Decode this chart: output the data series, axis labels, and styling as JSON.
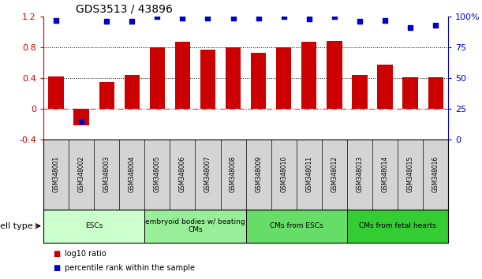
{
  "title": "GDS3513 / 43896",
  "samples": [
    "GSM348001",
    "GSM348002",
    "GSM348003",
    "GSM348004",
    "GSM348005",
    "GSM348006",
    "GSM348007",
    "GSM348008",
    "GSM348009",
    "GSM348010",
    "GSM348011",
    "GSM348012",
    "GSM348013",
    "GSM348014",
    "GSM348015",
    "GSM348016"
  ],
  "log10_ratio": [
    0.42,
    -0.22,
    0.35,
    0.44,
    0.8,
    0.87,
    0.77,
    0.8,
    0.73,
    0.8,
    0.87,
    0.88,
    0.44,
    0.58,
    0.41,
    0.41
  ],
  "percentile_rank": [
    97,
    15,
    96,
    96,
    100,
    99,
    99,
    99,
    99,
    100,
    98,
    100,
    96,
    97,
    91,
    93
  ],
  "bar_color": "#cc0000",
  "dot_color": "#0000cc",
  "ylim_left": [
    -0.4,
    1.2
  ],
  "ylim_right": [
    0,
    100
  ],
  "yticks_left": [
    -0.4,
    0.0,
    0.4,
    0.8,
    1.2
  ],
  "yticks_right": [
    0,
    25,
    50,
    75,
    100
  ],
  "hline_zero": 0,
  "dotted_lines": [
    0.4,
    0.8
  ],
  "cell_type_groups": [
    {
      "label": "ESCs",
      "start": 0,
      "end": 3,
      "color": "#ccffcc"
    },
    {
      "label": "embryoid bodies w/ beating\nCMs",
      "start": 4,
      "end": 7,
      "color": "#99ee99"
    },
    {
      "label": "CMs from ESCs",
      "start": 8,
      "end": 11,
      "color": "#66dd66"
    },
    {
      "label": "CMs from fetal hearts",
      "start": 12,
      "end": 15,
      "color": "#33cc33"
    }
  ],
  "legend_items": [
    {
      "label": "log10 ratio",
      "color": "#cc0000"
    },
    {
      "label": "percentile rank within the sample",
      "color": "#0000cc"
    }
  ],
  "cell_type_label": "cell type",
  "bg_color": "#d4d4d4"
}
